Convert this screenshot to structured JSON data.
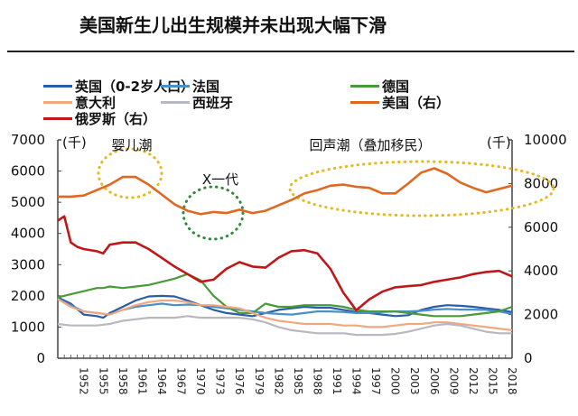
{
  "title": "美国新生儿出生规模并未出现大幅下滑",
  "chart_data": {
    "type": "line",
    "title": "美国新生儿出生规模并未出现大幅下滑",
    "xlabel": "",
    "ylabel_left": "(千)",
    "ylabel_right": "(千)",
    "xlim": [
      1948,
      2018
    ],
    "ylim_left": [
      0,
      7000
    ],
    "ylim_right": [
      0,
      10000
    ],
    "yticks_left": [
      "0",
      "1000",
      "2000",
      "3000",
      "4000",
      "5000",
      "6000",
      "7000"
    ],
    "yticks_right": [
      "0",
      "2000",
      "4000",
      "6000",
      "8000",
      "10000"
    ],
    "xticks": [
      "1952",
      "1955",
      "1958",
      "1961",
      "1964",
      "1967",
      "1970",
      "1973",
      "1976",
      "1979",
      "1982",
      "1985",
      "1988",
      "1991",
      "1994",
      "1997",
      "2000",
      "2003",
      "2006",
      "2009",
      "2012",
      "2015",
      "2018"
    ],
    "grid": false,
    "legend_position": "top",
    "annotations": [
      {
        "text": "婴儿潮",
        "color": "#e8b820"
      },
      {
        "text": "X一代",
        "color": "#2e8b3a"
      },
      {
        "text": "回声潮（叠加移民）",
        "color": "#e8b820"
      }
    ],
    "series": [
      {
        "name": "英国（0-2岁人口）",
        "color": "#2a5caa",
        "axis": "left",
        "x": [
          1948,
          1950,
          1952,
          1954,
          1955,
          1956,
          1958,
          1960,
          1962,
          1964,
          1966,
          1968,
          1970,
          1972,
          1974,
          1976,
          1978,
          1980,
          1982,
          1984,
          1986,
          1988,
          1990,
          1992,
          1994,
          1996,
          1998,
          2000,
          2002,
          2004,
          2006,
          2008,
          2010,
          2012,
          2014,
          2016,
          2018
        ],
        "y": [
          1950,
          1750,
          1400,
          1350,
          1300,
          1450,
          1650,
          1850,
          1980,
          2000,
          1980,
          1850,
          1700,
          1550,
          1450,
          1400,
          1350,
          1450,
          1550,
          1600,
          1650,
          1620,
          1620,
          1550,
          1480,
          1450,
          1400,
          1350,
          1380,
          1550,
          1650,
          1700,
          1680,
          1650,
          1600,
          1550,
          1480
        ]
      },
      {
        "name": "法国",
        "color": "#4a90c8",
        "axis": "left",
        "x": [
          1948,
          1950,
          1952,
          1954,
          1956,
          1958,
          1960,
          1962,
          1964,
          1966,
          1968,
          1970,
          1972,
          1974,
          1976,
          1978,
          1980,
          1982,
          1984,
          1986,
          1988,
          1990,
          1992,
          1994,
          1996,
          1998,
          2000,
          2002,
          2004,
          2006,
          2008,
          2010,
          2012,
          2014,
          2016,
          2018
        ],
        "y": [
          1900,
          1700,
          1500,
          1450,
          1400,
          1550,
          1650,
          1700,
          1750,
          1700,
          1720,
          1700,
          1650,
          1600,
          1550,
          1500,
          1450,
          1420,
          1400,
          1450,
          1500,
          1500,
          1480,
          1450,
          1450,
          1480,
          1500,
          1500,
          1520,
          1560,
          1580,
          1560,
          1560,
          1550,
          1500,
          1420
        ]
      },
      {
        "name": "德国",
        "color": "#4a9a3a",
        "axis": "left",
        "x": [
          1948,
          1950,
          1952,
          1954,
          1955,
          1956,
          1958,
          1960,
          1962,
          1964,
          1966,
          1968,
          1970,
          1972,
          1974,
          1976,
          1978,
          1979,
          1980,
          1982,
          1984,
          1986,
          1988,
          1990,
          1992,
          1994,
          1996,
          1998,
          2000,
          2002,
          2004,
          2006,
          2008,
          2010,
          2012,
          2014,
          2016,
          2018
        ],
        "y": [
          1950,
          2050,
          2150,
          2250,
          2250,
          2300,
          2250,
          2300,
          2350,
          2450,
          2550,
          2700,
          2500,
          2000,
          1650,
          1450,
          1450,
          1600,
          1750,
          1650,
          1650,
          1700,
          1700,
          1700,
          1650,
          1550,
          1500,
          1500,
          1500,
          1450,
          1400,
          1350,
          1350,
          1350,
          1400,
          1450,
          1500,
          1650
        ]
      },
      {
        "name": "意大利",
        "color": "#f0a880",
        "axis": "left",
        "x": [
          1948,
          1950,
          1952,
          1954,
          1956,
          1958,
          1960,
          1962,
          1964,
          1966,
          1968,
          1970,
          1972,
          1974,
          1976,
          1978,
          1980,
          1982,
          1984,
          1986,
          1988,
          1990,
          1992,
          1994,
          1996,
          1998,
          2000,
          2002,
          2004,
          2006,
          2008,
          2010,
          2012,
          2014,
          2016,
          2018
        ],
        "y": [
          1900,
          1650,
          1500,
          1450,
          1400,
          1550,
          1700,
          1800,
          1850,
          1850,
          1800,
          1700,
          1700,
          1650,
          1600,
          1450,
          1300,
          1200,
          1150,
          1100,
          1100,
          1100,
          1050,
          1050,
          1000,
          1000,
          1050,
          1100,
          1100,
          1150,
          1150,
          1100,
          1050,
          1000,
          950,
          900
        ]
      },
      {
        "name": "西班牙",
        "color": "#b8b8c0",
        "axis": "left",
        "x": [
          1948,
          1950,
          1952,
          1954,
          1956,
          1958,
          1960,
          1962,
          1964,
          1966,
          1968,
          1970,
          1972,
          1974,
          1976,
          1978,
          1980,
          1982,
          1984,
          1986,
          1988,
          1990,
          1992,
          1994,
          1996,
          1998,
          2000,
          2002,
          2004,
          2006,
          2008,
          2010,
          2012,
          2014,
          2016,
          2018
        ],
        "y": [
          1100,
          1050,
          1050,
          1050,
          1100,
          1200,
          1250,
          1300,
          1300,
          1300,
          1350,
          1300,
          1300,
          1300,
          1300,
          1250,
          1150,
          1000,
          900,
          850,
          800,
          800,
          800,
          750,
          750,
          750,
          780,
          850,
          950,
          1050,
          1100,
          1050,
          950,
          850,
          800,
          800
        ]
      },
      {
        "name": "美国（右）",
        "color": "#e06820",
        "axis": "right",
        "x": [
          1948,
          1950,
          1952,
          1954,
          1956,
          1958,
          1960,
          1962,
          1964,
          1966,
          1968,
          1970,
          1972,
          1974,
          1976,
          1978,
          1980,
          1982,
          1984,
          1986,
          1988,
          1990,
          1992,
          1994,
          1996,
          1998,
          2000,
          2002,
          2004,
          2006,
          2008,
          2010,
          2012,
          2014,
          2016,
          2018
        ],
        "y": [
          7400,
          7400,
          7450,
          7700,
          7950,
          8300,
          8300,
          7950,
          7500,
          7050,
          6750,
          6600,
          6700,
          6650,
          6800,
          6650,
          6750,
          7000,
          7250,
          7550,
          7700,
          7900,
          7950,
          7850,
          7800,
          7550,
          7550,
          8000,
          8500,
          8700,
          8450,
          8050,
          7800,
          7600,
          7750,
          7900
        ]
      },
      {
        "name": "俄罗斯（右）",
        "color": "#c01818",
        "axis": "right",
        "x": [
          1948,
          1949,
          1950,
          1951,
          1952,
          1954,
          1955,
          1956,
          1958,
          1960,
          1962,
          1964,
          1966,
          1968,
          1970,
          1972,
          1974,
          1976,
          1978,
          1980,
          1982,
          1984,
          1986,
          1988,
          1990,
          1992,
          1994,
          1996,
          1998,
          2000,
          2002,
          2004,
          2006,
          2008,
          2010,
          2012,
          2014,
          2016,
          2018
        ],
        "y": [
          6300,
          6500,
          5300,
          5100,
          5000,
          4900,
          4800,
          5200,
          5300,
          5300,
          5000,
          4600,
          4200,
          3850,
          3500,
          3600,
          4100,
          4400,
          4200,
          4150,
          4600,
          4900,
          4950,
          4800,
          4100,
          3000,
          2200,
          2700,
          3050,
          3250,
          3300,
          3350,
          3500,
          3600,
          3700,
          3850,
          3950,
          4000,
          3750
        ]
      }
    ]
  }
}
